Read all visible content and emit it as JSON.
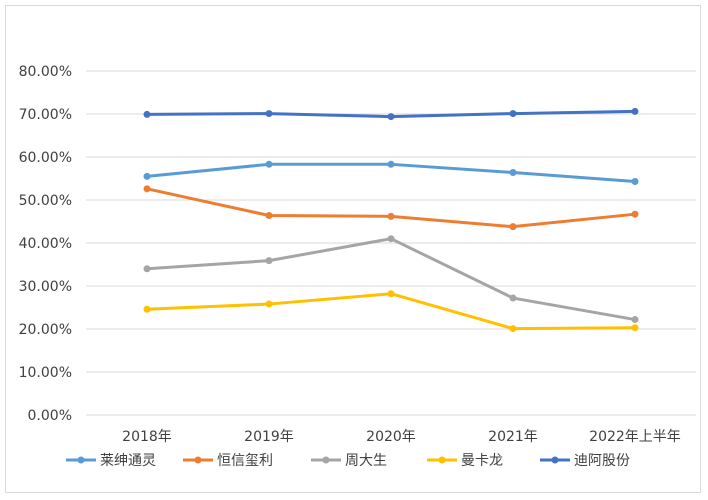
{
  "chart_data": {
    "type": "line",
    "title": "",
    "xlabel": "",
    "ylabel": "",
    "categories": [
      "2018年",
      "2019年",
      "2020年",
      "2021年",
      "2022年上半年"
    ],
    "ylim": [
      0,
      80
    ],
    "yticks": [
      0,
      10,
      20,
      30,
      40,
      50,
      60,
      70,
      80
    ],
    "ytick_labels": [
      "0.00%",
      "10.00%",
      "20.00%",
      "30.00%",
      "40.00%",
      "50.00%",
      "60.00%",
      "70.00%",
      "80.00%"
    ],
    "grid": true,
    "legend_position": "bottom",
    "series": [
      {
        "name": "莱绅通灵",
        "color": "#5b9bd5",
        "values": [
          55.5,
          58.3,
          58.3,
          56.4,
          54.3
        ]
      },
      {
        "name": "恒信玺利",
        "color": "#ed7d31",
        "values": [
          52.6,
          46.4,
          46.2,
          43.8,
          46.7
        ]
      },
      {
        "name": "周大生",
        "color": "#a5a5a5",
        "values": [
          34.0,
          35.9,
          41.0,
          27.2,
          22.2
        ]
      },
      {
        "name": "曼卡龙",
        "color": "#ffc000",
        "values": [
          24.6,
          25.8,
          28.2,
          20.1,
          20.3
        ]
      },
      {
        "name": "迪阿股份",
        "color": "#4472c4",
        "values": [
          69.9,
          70.1,
          69.4,
          70.1,
          70.6
        ]
      }
    ]
  }
}
